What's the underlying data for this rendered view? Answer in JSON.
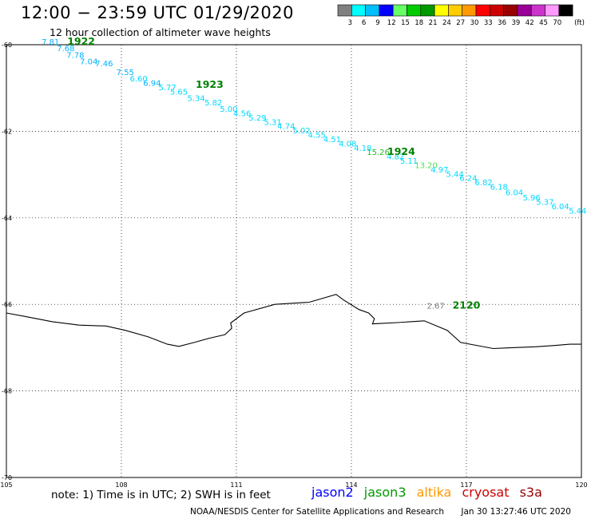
{
  "header": {
    "title": "12:00 − 23:59 UTC 01/29/2020",
    "subtitle": "12 hour collection of altimeter wave heights"
  },
  "colorbar": {
    "unit": "(ft)",
    "bins": [
      {
        "label": "3",
        "color": "#808080"
      },
      {
        "label": "6",
        "color": "#00ffff"
      },
      {
        "label": "9",
        "color": "#00bfff"
      },
      {
        "label": "12",
        "color": "#0000ff"
      },
      {
        "label": "15",
        "color": "#66ff66"
      },
      {
        "label": "18",
        "color": "#00cc00"
      },
      {
        "label": "21",
        "color": "#009900"
      },
      {
        "label": "24",
        "color": "#ffff00"
      },
      {
        "label": "27",
        "color": "#ffcc00"
      },
      {
        "label": "30",
        "color": "#ff9900"
      },
      {
        "label": "33",
        "color": "#ff0000"
      },
      {
        "label": "36",
        "color": "#cc0000"
      },
      {
        "label": "39",
        "color": "#990000"
      },
      {
        "label": "42",
        "color": "#990099"
      },
      {
        "label": "45",
        "color": "#cc33cc"
      },
      {
        "label": "70",
        "color": "#ff99ff"
      },
      {
        "label": "",
        "color": "#000000"
      }
    ]
  },
  "map": {
    "lon_range": [
      105,
      120
    ],
    "lat_range": [
      -70,
      -60
    ],
    "lon_ticks": [
      "105",
      "108",
      "111",
      "114",
      "117",
      "120"
    ],
    "lat_ticks": [
      {
        "value": -60,
        "label": "-60"
      },
      {
        "value": -62,
        "label": "-62"
      },
      {
        "value": -64,
        "label": "-64"
      },
      {
        "value": -66,
        "label": "-66"
      },
      {
        "value": -68,
        "label": "-68"
      },
      {
        "value": -70,
        "label": "-70"
      }
    ],
    "coastline": [
      [
        105.0,
        -66.2
      ],
      [
        105.5,
        -66.28
      ],
      [
        106.2,
        -66.4
      ],
      [
        106.9,
        -66.48
      ],
      [
        107.6,
        -66.5
      ],
      [
        108.1,
        -66.6
      ],
      [
        108.7,
        -66.75
      ],
      [
        109.2,
        -66.92
      ],
      [
        109.5,
        -66.97
      ],
      [
        109.9,
        -66.88
      ],
      [
        110.3,
        -66.78
      ],
      [
        110.7,
        -66.7
      ],
      [
        110.88,
        -66.55
      ],
      [
        110.85,
        -66.43
      ],
      [
        111.2,
        -66.2
      ],
      [
        112.0,
        -66.0
      ],
      [
        112.9,
        -65.95
      ],
      [
        113.6,
        -65.77
      ],
      [
        113.8,
        -65.9
      ],
      [
        114.2,
        -66.12
      ],
      [
        114.45,
        -66.2
      ],
      [
        114.6,
        -66.33
      ],
      [
        114.55,
        -66.45
      ],
      [
        115.2,
        -66.42
      ],
      [
        115.9,
        -66.38
      ],
      [
        116.5,
        -66.6
      ],
      [
        116.85,
        -66.88
      ],
      [
        117.7,
        -67.02
      ],
      [
        118.2,
        -67.0
      ],
      [
        118.8,
        -66.98
      ],
      [
        119.3,
        -66.95
      ],
      [
        119.7,
        -66.92
      ],
      [
        120.0,
        -66.92
      ]
    ],
    "wave_labels": [
      {
        "lon": 106.15,
        "lat": -60.0,
        "text": "7.81",
        "color": "#00b3ff"
      },
      {
        "lon": 106.55,
        "lat": -60.15,
        "text": "7.68",
        "color": "#00b3ff"
      },
      {
        "lon": 106.8,
        "lat": -60.3,
        "text": "7.78",
        "color": "#00b3ff"
      },
      {
        "lon": 107.15,
        "lat": -60.45,
        "text": "7.04",
        "color": "#00b3ff"
      },
      {
        "lon": 107.55,
        "lat": -60.5,
        "text": "7.46",
        "color": "#00b3ff"
      },
      {
        "lon": 108.1,
        "lat": -60.7,
        "text": "7.55",
        "color": "#00b3ff"
      },
      {
        "lon": 108.45,
        "lat": -60.85,
        "text": "6.60",
        "color": "#00d8ff"
      },
      {
        "lon": 108.8,
        "lat": -60.95,
        "text": "6.94",
        "color": "#00b3ff"
      },
      {
        "lon": 109.2,
        "lat": -61.05,
        "text": "5.77",
        "color": "#00d8ff"
      },
      {
        "lon": 109.5,
        "lat": -61.15,
        "text": "5.65",
        "color": "#00d8ff"
      },
      {
        "lon": 109.95,
        "lat": -61.3,
        "text": "5.34",
        "color": "#00d8ff"
      },
      {
        "lon": 110.4,
        "lat": -61.4,
        "text": "5.82",
        "color": "#00d8ff"
      },
      {
        "lon": 110.8,
        "lat": -61.55,
        "text": "5.00",
        "color": "#00d8ff"
      },
      {
        "lon": 111.15,
        "lat": -61.65,
        "text": "4.56",
        "color": "#00d8ff"
      },
      {
        "lon": 111.55,
        "lat": -61.75,
        "text": "5.29",
        "color": "#00d8ff"
      },
      {
        "lon": 111.95,
        "lat": -61.85,
        "text": "5.31",
        "color": "#00d8ff"
      },
      {
        "lon": 112.3,
        "lat": -61.95,
        "text": "4.74",
        "color": "#00d8ff"
      },
      {
        "lon": 112.7,
        "lat": -62.05,
        "text": "5.02",
        "color": "#00d8ff"
      },
      {
        "lon": 113.1,
        "lat": -62.15,
        "text": "4.55",
        "color": "#00d8ff"
      },
      {
        "lon": 113.5,
        "lat": -62.25,
        "text": "4.51",
        "color": "#00d8ff"
      },
      {
        "lon": 113.9,
        "lat": -62.35,
        "text": "4.08",
        "color": "#00d8ff"
      },
      {
        "lon": 114.3,
        "lat": -62.45,
        "text": "4.18",
        "color": "#00d8ff"
      },
      {
        "lon": 114.7,
        "lat": -62.55,
        "text": "15.26",
        "color": "#22bb22"
      },
      {
        "lon": 115.15,
        "lat": -62.65,
        "text": "4.82",
        "color": "#00d8ff"
      },
      {
        "lon": 115.5,
        "lat": -62.75,
        "text": "5.11",
        "color": "#00d8ff"
      },
      {
        "lon": 115.95,
        "lat": -62.85,
        "text": "13.20",
        "color": "#55dd55"
      },
      {
        "lon": 116.3,
        "lat": -62.95,
        "text": "4.97",
        "color": "#00d8ff"
      },
      {
        "lon": 116.7,
        "lat": -63.05,
        "text": "5.44",
        "color": "#00d8ff"
      },
      {
        "lon": 117.05,
        "lat": -63.15,
        "text": "6.24",
        "color": "#00d8ff"
      },
      {
        "lon": 117.45,
        "lat": -63.25,
        "text": "6.82",
        "color": "#00d8ff"
      },
      {
        "lon": 117.85,
        "lat": -63.35,
        "text": "6.18",
        "color": "#00d8ff"
      },
      {
        "lon": 118.25,
        "lat": -63.48,
        "text": "6.04",
        "color": "#00d8ff"
      },
      {
        "lon": 118.7,
        "lat": -63.6,
        "text": "5.96",
        "color": "#00d8ff"
      },
      {
        "lon": 119.05,
        "lat": -63.7,
        "text": "5.37",
        "color": "#00d8ff"
      },
      {
        "lon": 119.45,
        "lat": -63.8,
        "text": "6.04",
        "color": "#00d8ff"
      },
      {
        "lon": 119.9,
        "lat": -63.9,
        "text": "5.44",
        "color": "#00d8ff"
      },
      {
        "lon": 116.2,
        "lat": -66.1,
        "text": "2.67",
        "color": "#808080"
      }
    ],
    "pass_labels": [
      {
        "lon": 106.95,
        "lat": -60.0,
        "text": "1922"
      },
      {
        "lon": 110.3,
        "lat": -61.0,
        "text": "1923"
      },
      {
        "lon": 115.3,
        "lat": -62.55,
        "text": "1924"
      },
      {
        "lon": 117.0,
        "lat": -66.1,
        "text": "2120"
      }
    ]
  },
  "footer": {
    "note": "note: 1) Time is in UTC; 2) SWH is in feet",
    "satellites": [
      {
        "name": "jason2",
        "color": "#0000ff"
      },
      {
        "name": "jason3",
        "color": "#009900"
      },
      {
        "name": "altika",
        "color": "#ff9900"
      },
      {
        "name": "cryosat",
        "color": "#cc0000"
      },
      {
        "name": "s3a",
        "color": "#990000"
      }
    ],
    "credit": "NOAA/NESDIS Center for Satellite Applications and Research",
    "timestamp": "Jan 30 13:27:46 UTC 2020"
  }
}
